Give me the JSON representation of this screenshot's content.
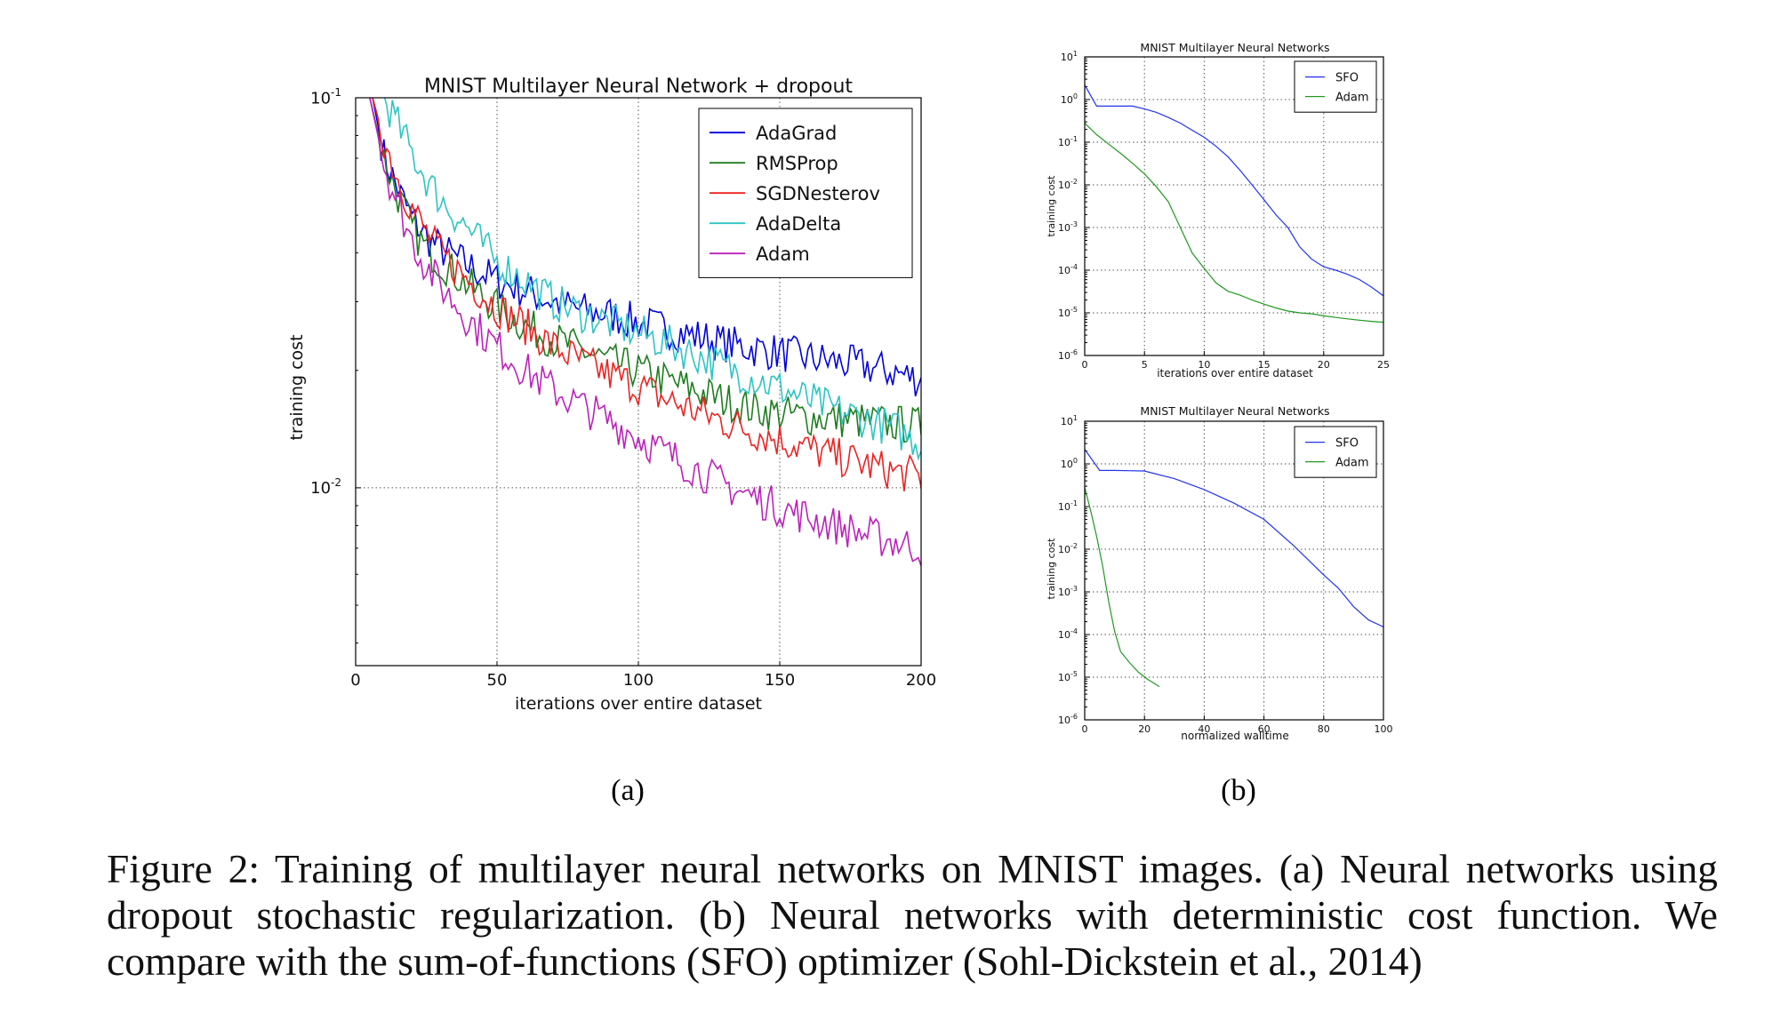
{
  "chart_data": [
    {
      "type": "line",
      "panel_label": "(a)",
      "title": "MNIST Multilayer Neural Network + dropout",
      "xlabel": "iterations over entire dataset",
      "ylabel": "training cost",
      "xlim": [
        0,
        200
      ],
      "ylim": [
        0.0035,
        0.1
      ],
      "yscale": "log",
      "grid": "dotted",
      "legend_position": "top-right",
      "x_ticks": [
        "0",
        "50",
        "100",
        "150",
        "200"
      ],
      "y_ticks": [
        {
          "base": "10",
          "exp": "-1"
        },
        {
          "base": "10",
          "exp": "-2"
        }
      ],
      "series": [
        {
          "name": "AdaGrad",
          "color": "#0000dd",
          "points": [
            [
              0,
              0.11
            ],
            [
              6,
              0.1
            ],
            [
              10,
              0.071
            ],
            [
              15,
              0.058
            ],
            [
              20,
              0.049
            ],
            [
              25,
              0.044
            ],
            [
              30,
              0.041
            ],
            [
              40,
              0.037
            ],
            [
              50,
              0.034
            ],
            [
              60,
              0.032
            ],
            [
              70,
              0.03
            ],
            [
              80,
              0.0285
            ],
            [
              90,
              0.0278
            ],
            [
              100,
              0.0265
            ],
            [
              110,
              0.0255
            ],
            [
              120,
              0.0245
            ],
            [
              130,
              0.0235
            ],
            [
              140,
              0.0228
            ],
            [
              150,
              0.0222
            ],
            [
              160,
              0.0215
            ],
            [
              170,
              0.021
            ],
            [
              180,
              0.0205
            ],
            [
              190,
              0.0198
            ],
            [
              200,
              0.019
            ]
          ]
        },
        {
          "name": "RMSProp",
          "color": "#1e7d1e",
          "points": [
            [
              0,
              0.11
            ],
            [
              5,
              0.1
            ],
            [
              10,
              0.07
            ],
            [
              15,
              0.056
            ],
            [
              20,
              0.046
            ],
            [
              25,
              0.041
            ],
            [
              30,
              0.038
            ],
            [
              40,
              0.033
            ],
            [
              50,
              0.029
            ],
            [
              60,
              0.026
            ],
            [
              70,
              0.024
            ],
            [
              80,
              0.0225
            ],
            [
              90,
              0.021
            ],
            [
              100,
              0.02
            ],
            [
              110,
              0.0188
            ],
            [
              120,
              0.0178
            ],
            [
              130,
              0.0168
            ],
            [
              140,
              0.016
            ],
            [
              150,
              0.0155
            ],
            [
              160,
              0.0152
            ],
            [
              170,
              0.015
            ],
            [
              180,
              0.0148
            ],
            [
              190,
              0.0146
            ],
            [
              200,
              0.0144
            ]
          ]
        },
        {
          "name": "SGDNesterov",
          "color": "#ee2222",
          "points": [
            [
              0,
              0.11
            ],
            [
              6,
              0.1
            ],
            [
              10,
              0.078
            ],
            [
              15,
              0.062
            ],
            [
              20,
              0.052
            ],
            [
              25,
              0.045
            ],
            [
              30,
              0.04
            ],
            [
              40,
              0.034
            ],
            [
              50,
              0.029
            ],
            [
              60,
              0.026
            ],
            [
              70,
              0.023
            ],
            [
              80,
              0.021
            ],
            [
              90,
              0.0195
            ],
            [
              100,
              0.0182
            ],
            [
              110,
              0.0168
            ],
            [
              120,
              0.0158
            ],
            [
              130,
              0.0148
            ],
            [
              140,
              0.014
            ],
            [
              150,
              0.0133
            ],
            [
              160,
              0.0126
            ],
            [
              170,
              0.012
            ],
            [
              180,
              0.0115
            ],
            [
              190,
              0.011
            ],
            [
              200,
              0.0107
            ]
          ]
        },
        {
          "name": "AdaDelta",
          "color": "#2ec4c4",
          "points": [
            [
              0,
              0.11
            ],
            [
              10,
              0.1
            ],
            [
              15,
              0.085
            ],
            [
              20,
              0.072
            ],
            [
              25,
              0.062
            ],
            [
              30,
              0.055
            ],
            [
              40,
              0.046
            ],
            [
              50,
              0.038
            ],
            [
              60,
              0.034
            ],
            [
              70,
              0.03
            ],
            [
              80,
              0.028
            ],
            [
              90,
              0.0265
            ],
            [
              100,
              0.025
            ],
            [
              110,
              0.0235
            ],
            [
              120,
              0.022
            ],
            [
              130,
              0.0205
            ],
            [
              140,
              0.0192
            ],
            [
              150,
              0.018
            ],
            [
              160,
              0.0168
            ],
            [
              170,
              0.0158
            ],
            [
              180,
              0.015
            ],
            [
              190,
              0.0142
            ],
            [
              200,
              0.013
            ]
          ]
        },
        {
          "name": "Adam",
          "color": "#bb22bb",
          "points": [
            [
              0,
              0.11
            ],
            [
              5,
              0.1
            ],
            [
              10,
              0.068
            ],
            [
              15,
              0.053
            ],
            [
              20,
              0.043
            ],
            [
              25,
              0.037
            ],
            [
              30,
              0.033
            ],
            [
              40,
              0.027
            ],
            [
              50,
              0.023
            ],
            [
              60,
              0.02
            ],
            [
              70,
              0.0178
            ],
            [
              80,
              0.0162
            ],
            [
              90,
              0.0148
            ],
            [
              100,
              0.0135
            ],
            [
              110,
              0.0122
            ],
            [
              120,
              0.0112
            ],
            [
              130,
              0.0102
            ],
            [
              140,
              0.0095
            ],
            [
              150,
              0.0089
            ],
            [
              160,
              0.0084
            ],
            [
              170,
              0.008
            ],
            [
              180,
              0.0076
            ],
            [
              190,
              0.0073
            ],
            [
              200,
              0.007
            ]
          ]
        }
      ]
    },
    {
      "type": "line",
      "panel_label": "(b)",
      "title": "MNIST Multilayer Neural Networks",
      "xlabel": "iterations over entire dataset",
      "ylabel": "training cost",
      "xlim": [
        0,
        25
      ],
      "ylim": [
        1e-06,
        10
      ],
      "yscale": "log",
      "grid": "dotted",
      "legend_position": "top-right",
      "x_ticks": [
        "0",
        "5",
        "10",
        "15",
        "20",
        "25"
      ],
      "y_ticks": [
        {
          "base": "10",
          "exp": "1"
        },
        {
          "base": "10",
          "exp": "0"
        },
        {
          "base": "10",
          "exp": "-1"
        },
        {
          "base": "10",
          "exp": "-2"
        },
        {
          "base": "10",
          "exp": "-3"
        },
        {
          "base": "10",
          "exp": "-4"
        },
        {
          "base": "10",
          "exp": "-5"
        },
        {
          "base": "10",
          "exp": "-6"
        }
      ],
      "series": [
        {
          "name": "SFO",
          "color": "#2233ee",
          "points": [
            [
              0,
              2.2
            ],
            [
              1,
              0.7
            ],
            [
              2,
              0.7
            ],
            [
              3,
              0.7
            ],
            [
              4,
              0.7
            ],
            [
              5,
              0.6
            ],
            [
              6,
              0.5
            ],
            [
              7,
              0.38
            ],
            [
              8,
              0.28
            ],
            [
              9,
              0.19
            ],
            [
              10,
              0.13
            ],
            [
              11,
              0.08
            ],
            [
              12,
              0.045
            ],
            [
              13,
              0.022
            ],
            [
              14,
              0.01
            ],
            [
              15,
              0.0045
            ],
            [
              16,
              0.002
            ],
            [
              17,
              0.001
            ],
            [
              18,
              0.00035
            ],
            [
              19,
              0.00018
            ],
            [
              20,
              0.00012
            ],
            [
              21,
              0.0001
            ],
            [
              22,
              8e-05
            ],
            [
              23,
              6e-05
            ],
            [
              24,
              4e-05
            ],
            [
              25,
              2.5e-05
            ]
          ]
        },
        {
          "name": "Adam",
          "color": "#229922",
          "points": [
            [
              0,
              0.28
            ],
            [
              1,
              0.15
            ],
            [
              2,
              0.09
            ],
            [
              3,
              0.055
            ],
            [
              4,
              0.032
            ],
            [
              5,
              0.018
            ],
            [
              6,
              0.009
            ],
            [
              7,
              0.004
            ],
            [
              8,
              0.001
            ],
            [
              9,
              0.00025
            ],
            [
              10,
              0.00011
            ],
            [
              11,
              5e-05
            ],
            [
              12,
              3.2e-05
            ],
            [
              13,
              2.6e-05
            ],
            [
              14,
              2e-05
            ],
            [
              15,
              1.6e-05
            ],
            [
              16,
              1.3e-05
            ],
            [
              17,
              1.1e-05
            ],
            [
              18,
              1e-05
            ],
            [
              19,
              9.5e-06
            ],
            [
              20,
              8.5e-06
            ],
            [
              21,
              7.8e-06
            ],
            [
              22,
              7.2e-06
            ],
            [
              23,
              6.7e-06
            ],
            [
              24,
              6.3e-06
            ],
            [
              25,
              6e-06
            ]
          ]
        }
      ]
    },
    {
      "type": "line",
      "panel_label": "(b)",
      "title": "MNIST Multilayer Neural Networks",
      "xlabel": "normalized walltime",
      "ylabel": "training cost",
      "xlim": [
        0,
        100
      ],
      "ylim": [
        1e-06,
        10
      ],
      "yscale": "log",
      "grid": "dotted",
      "legend_position": "top-right",
      "x_ticks": [
        "0",
        "20",
        "40",
        "60",
        "80",
        "100"
      ],
      "y_ticks": [
        {
          "base": "10",
          "exp": "1"
        },
        {
          "base": "10",
          "exp": "0"
        },
        {
          "base": "10",
          "exp": "-1"
        },
        {
          "base": "10",
          "exp": "-2"
        },
        {
          "base": "10",
          "exp": "-3"
        },
        {
          "base": "10",
          "exp": "-4"
        },
        {
          "base": "10",
          "exp": "-5"
        },
        {
          "base": "10",
          "exp": "-6"
        }
      ],
      "series": [
        {
          "name": "SFO",
          "color": "#2233ee",
          "points": [
            [
              0,
              2.2
            ],
            [
              5,
              0.7
            ],
            [
              10,
              0.7
            ],
            [
              20,
              0.68
            ],
            [
              30,
              0.45
            ],
            [
              40,
              0.25
            ],
            [
              50,
              0.12
            ],
            [
              60,
              0.05
            ],
            [
              70,
              0.012
            ],
            [
              80,
              0.0025
            ],
            [
              85,
              0.0012
            ],
            [
              90,
              0.00045
            ],
            [
              95,
              0.00022
            ],
            [
              100,
              0.00015
            ]
          ]
        },
        {
          "name": "Adam",
          "color": "#229922",
          "points": [
            [
              0,
              0.28
            ],
            [
              2,
              0.08
            ],
            [
              4,
              0.02
            ],
            [
              6,
              0.004
            ],
            [
              8,
              0.0006
            ],
            [
              10,
              0.00012
            ],
            [
              12,
              4e-05
            ],
            [
              15,
              2.2e-05
            ],
            [
              18,
              1.3e-05
            ],
            [
              21,
              9e-06
            ],
            [
              25,
              6e-06
            ]
          ]
        }
      ]
    }
  ],
  "caption": "Figure 2: Training of multilayer neural networks on MNIST images. (a) Neural networks using dropout stochastic regularization. (b) Neural networks with deterministic cost function. We compare with the sum-of-functions (SFO) optimizer (Sohl-Dickstein et al., 2014)"
}
